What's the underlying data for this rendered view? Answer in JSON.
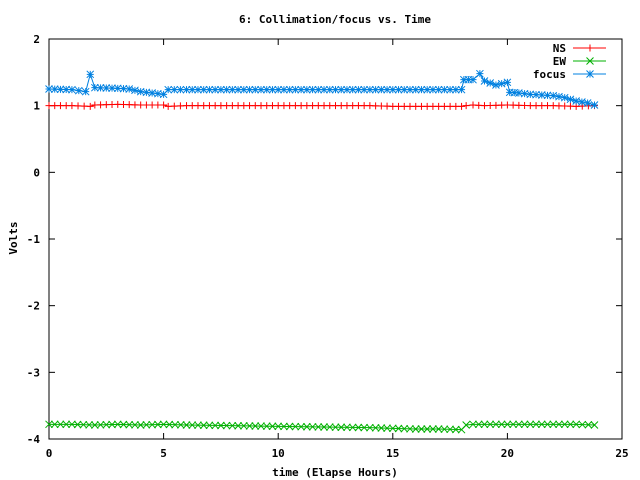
{
  "chart_data": {
    "type": "line",
    "title": "6: Collimation/focus vs. Time",
    "xlabel": "time (Elapse Hours)",
    "ylabel": "Volts",
    "xlim": [
      0,
      25
    ],
    "ylim": [
      -4,
      2
    ],
    "xticks": [
      0,
      5,
      10,
      15,
      20,
      25
    ],
    "yticks": [
      -4,
      -3,
      -2,
      -1,
      0,
      1,
      2
    ],
    "legend_position": "top-right",
    "series": [
      {
        "name": "NS",
        "color": "#ff0000",
        "marker": "plus",
        "x": [
          0,
          1,
          1.8,
          2,
          3,
          4,
          5,
          5.2,
          6,
          8,
          10,
          12,
          14,
          15,
          16,
          17,
          18,
          18.2,
          18.5,
          19,
          20,
          21,
          22,
          23,
          23.8
        ],
        "y": [
          1.0,
          1.0,
          0.99,
          1.01,
          1.02,
          1.01,
          1.01,
          0.99,
          1.0,
          1.0,
          1.0,
          1.0,
          1.0,
          0.99,
          0.99,
          0.99,
          0.99,
          1.0,
          1.01,
          1.0,
          1.01,
          1.0,
          1.0,
          0.99,
          1.0
        ]
      },
      {
        "name": "EW",
        "color": "#00b000",
        "marker": "cross",
        "x": [
          0,
          1,
          2,
          3,
          4,
          5,
          6,
          8,
          10,
          12,
          14,
          15,
          16,
          17,
          18,
          18.2,
          18.5,
          19,
          20,
          21,
          22,
          23,
          23.8
        ],
        "y": [
          -3.78,
          -3.78,
          -3.79,
          -3.78,
          -3.79,
          -3.78,
          -3.79,
          -3.8,
          -3.81,
          -3.82,
          -3.83,
          -3.84,
          -3.85,
          -3.85,
          -3.86,
          -3.79,
          -3.78,
          -3.78,
          -3.78,
          -3.78,
          -3.78,
          -3.78,
          -3.79
        ]
      },
      {
        "name": "focus",
        "color": "#0080e0",
        "marker": "star",
        "x": [
          0,
          1,
          1.6,
          1.8,
          2,
          3,
          3.5,
          4,
          5,
          5.2,
          6,
          8,
          10,
          12,
          14,
          16,
          17,
          18,
          18.1,
          18.5,
          18.8,
          19,
          19.5,
          20,
          20.1,
          20.5,
          21,
          22,
          22.5,
          23,
          23.5,
          23.8
        ],
        "y": [
          1.25,
          1.24,
          1.21,
          1.47,
          1.27,
          1.26,
          1.25,
          1.21,
          1.17,
          1.24,
          1.24,
          1.24,
          1.24,
          1.24,
          1.24,
          1.24,
          1.24,
          1.24,
          1.39,
          1.39,
          1.48,
          1.37,
          1.31,
          1.35,
          1.2,
          1.19,
          1.17,
          1.15,
          1.12,
          1.07,
          1.04,
          1.01
        ]
      }
    ]
  }
}
